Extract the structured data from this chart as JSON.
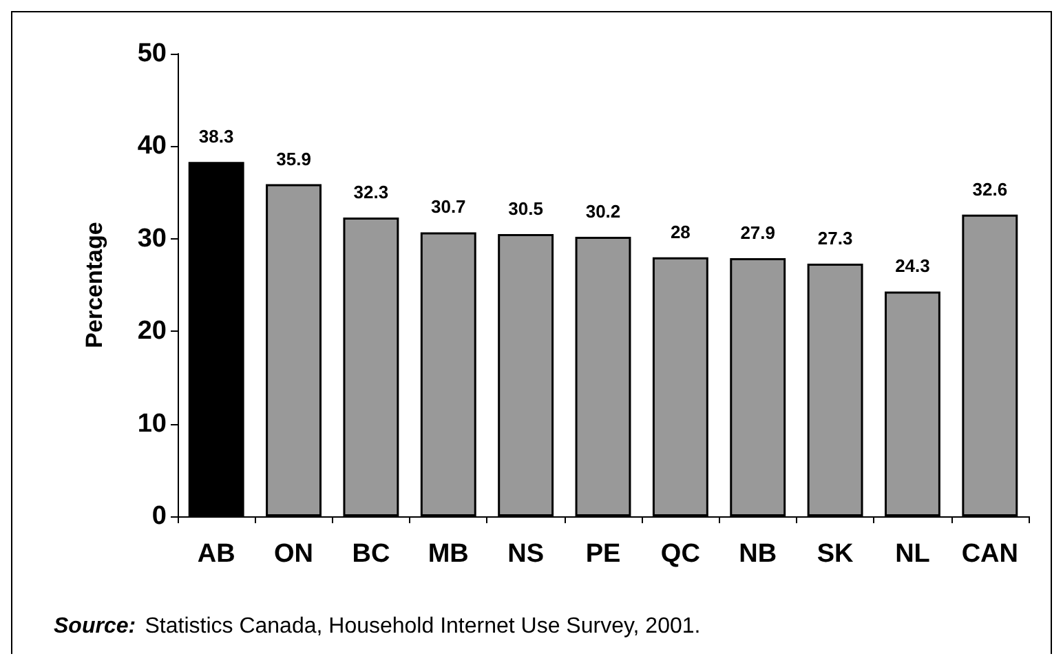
{
  "chart_data": {
    "type": "bar",
    "ylabel": "Percentage",
    "categories": [
      "AB",
      "ON",
      "BC",
      "MB",
      "NS",
      "PE",
      "QC",
      "NB",
      "SK",
      "NL",
      "CAN"
    ],
    "values": [
      38.3,
      35.9,
      32.3,
      30.7,
      30.5,
      30.2,
      28,
      27.9,
      27.3,
      24.3,
      32.6
    ],
    "colors": [
      "#000000",
      "#999999",
      "#999999",
      "#999999",
      "#999999",
      "#999999",
      "#999999",
      "#999999",
      "#999999",
      "#999999",
      "#999999"
    ],
    "ylim": [
      0,
      50
    ],
    "yticks": [
      0,
      10,
      20,
      30,
      40,
      50
    ],
    "grid": false,
    "data_labels": true,
    "annotations": [
      "Source: Statistics Canada, Household Internet Use Survey, 2001."
    ]
  }
}
